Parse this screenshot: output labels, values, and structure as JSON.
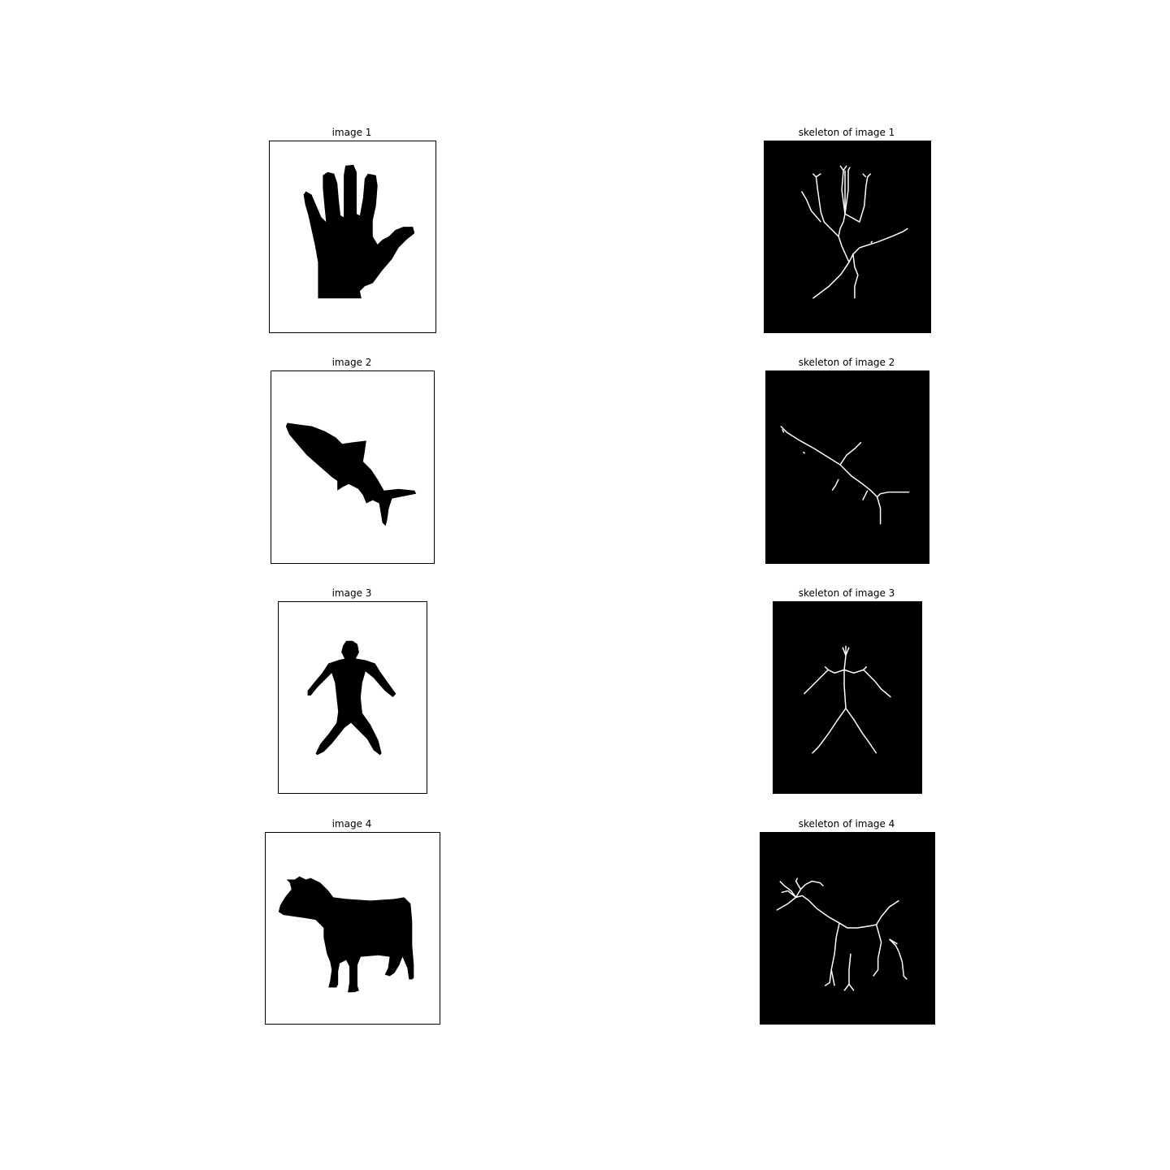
{
  "figure": {
    "colors": {
      "background": "#ffffff",
      "silhouette": "#000000",
      "skeleton_background": "#000000",
      "skeleton_line": "#ffffff"
    },
    "rows": [
      {
        "image_title": "image 1",
        "skeleton_title": "skeleton of image 1",
        "subject": "hand"
      },
      {
        "image_title": "image 2",
        "skeleton_title": "skeleton of image 2",
        "subject": "shark"
      },
      {
        "image_title": "image 3",
        "skeleton_title": "skeleton of image 3",
        "subject": "person"
      },
      {
        "image_title": "image 4",
        "skeleton_title": "skeleton of image 4",
        "subject": "cow"
      }
    ]
  }
}
